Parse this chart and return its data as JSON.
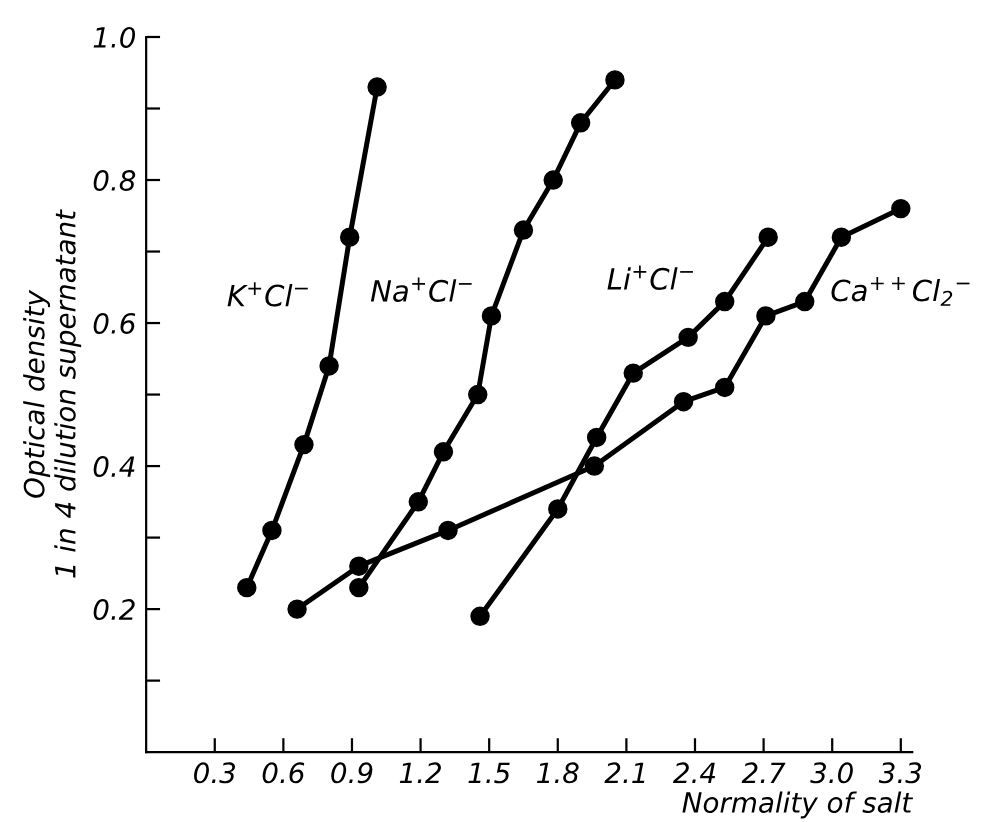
{
  "chart_data": {
    "type": "line",
    "xlabel": "Normality of salt",
    "ylabel": "Optical density\n1 in 4 dilution supernatant",
    "xlim": [
      0,
      3.35
    ],
    "ylim": [
      0,
      1.0
    ],
    "xticks": [
      0.3,
      0.6,
      0.9,
      1.2,
      1.5,
      1.8,
      2.1,
      2.4,
      2.7,
      {
        "value": 3.0,
        "label": "3.0"
      },
      3.3
    ],
    "yticks": [
      {
        "value": 0.1,
        "label": null
      },
      0.2,
      {
        "value": 0.3,
        "label": null
      },
      0.4,
      {
        "value": 0.5,
        "label": null
      },
      0.6,
      {
        "value": 0.7,
        "label": null
      },
      0.8,
      {
        "value": 0.9,
        "label": null
      },
      {
        "value": 1.0,
        "label": "1.0"
      }
    ],
    "grid": false,
    "legend": false,
    "marker": "circle",
    "line_style": "solid",
    "series": [
      {
        "name": "K$^{+}$Cl$^{−}$",
        "color": "#000000",
        "x": [
          0.44,
          0.55,
          0.69,
          0.8,
          0.89,
          1.01
        ],
        "values": [
          0.23,
          0.31,
          0.43,
          0.54,
          0.72,
          0.93
        ]
      },
      {
        "name": "Na$^{+}$Cl$^{−}$",
        "color": "#000000",
        "x": [
          0.93,
          1.19,
          1.3,
          1.45,
          1.51,
          1.65,
          1.78,
          1.9,
          2.05
        ],
        "values": [
          0.23,
          0.35,
          0.42,
          0.5,
          0.61,
          0.73,
          0.8,
          0.88,
          0.94
        ]
      },
      {
        "name": "Li$^{+}$Cl$^{−}$",
        "color": "#000000",
        "x": [
          1.46,
          1.8,
          1.97,
          2.13,
          2.37,
          2.53,
          2.72
        ],
        "values": [
          0.19,
          0.34,
          0.44,
          0.53,
          0.58,
          0.63,
          0.72
        ]
      },
      {
        "name": "Ca$^{++}$Cl$_{2}$$^{−}$",
        "color": "#000000",
        "x": [
          0.66,
          0.93,
          1.32,
          1.96,
          2.35,
          2.53,
          2.71,
          2.88,
          3.04,
          3.3
        ],
        "values": [
          0.2,
          0.26,
          0.31,
          0.4,
          0.49,
          0.51,
          0.61,
          0.63,
          0.72,
          0.76
        ]
      }
    ]
  }
}
